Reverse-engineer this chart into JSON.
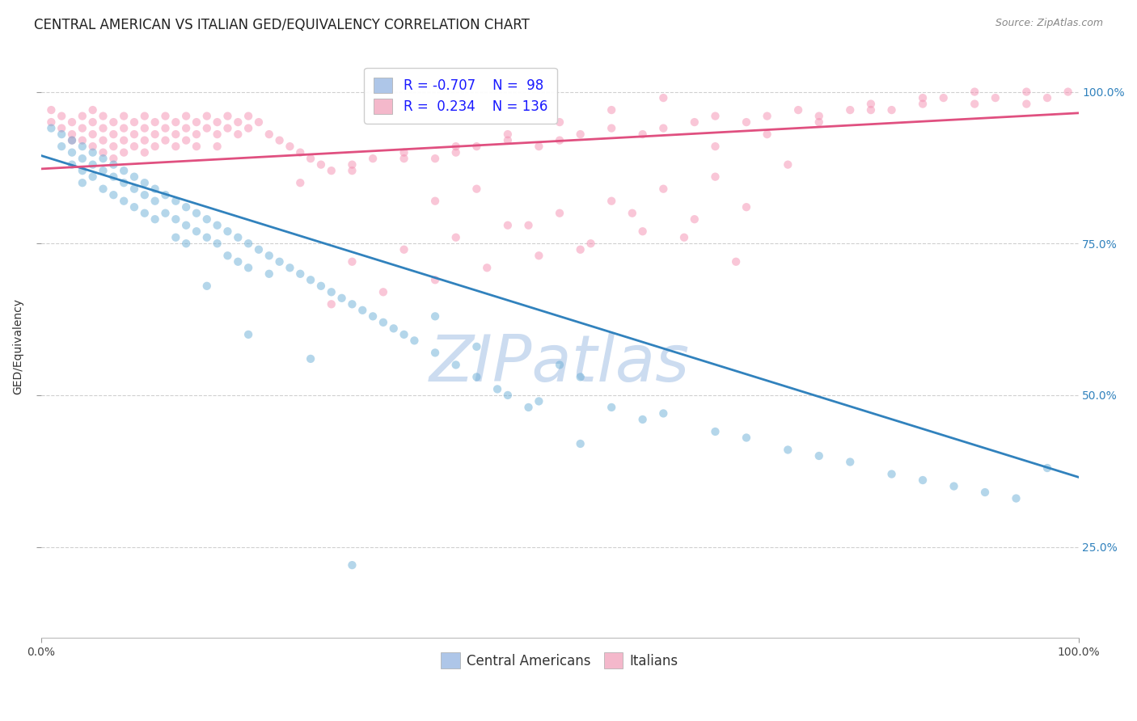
{
  "title": "CENTRAL AMERICAN VS ITALIAN GED/EQUIVALENCY CORRELATION CHART",
  "source": "Source: ZipAtlas.com",
  "ylabel": "GED/Equivalency",
  "watermark": "ZIPatlas",
  "legend_entries": [
    {
      "label": "Central Americans",
      "R": "-0.707",
      "N": "98"
    },
    {
      "label": "Italians",
      "R": "0.234",
      "N": "136"
    }
  ],
  "blue_scatter_x": [
    0.01,
    0.02,
    0.02,
    0.03,
    0.03,
    0.03,
    0.04,
    0.04,
    0.04,
    0.04,
    0.05,
    0.05,
    0.05,
    0.06,
    0.06,
    0.06,
    0.07,
    0.07,
    0.07,
    0.08,
    0.08,
    0.08,
    0.09,
    0.09,
    0.09,
    0.1,
    0.1,
    0.1,
    0.11,
    0.11,
    0.11,
    0.12,
    0.12,
    0.13,
    0.13,
    0.13,
    0.14,
    0.14,
    0.14,
    0.15,
    0.15,
    0.16,
    0.16,
    0.17,
    0.17,
    0.18,
    0.18,
    0.19,
    0.19,
    0.2,
    0.2,
    0.21,
    0.22,
    0.22,
    0.23,
    0.24,
    0.25,
    0.26,
    0.27,
    0.28,
    0.29,
    0.3,
    0.31,
    0.32,
    0.33,
    0.34,
    0.35,
    0.36,
    0.38,
    0.4,
    0.42,
    0.44,
    0.45,
    0.47,
    0.5,
    0.52,
    0.55,
    0.58,
    0.6,
    0.65,
    0.68,
    0.72,
    0.75,
    0.78,
    0.82,
    0.85,
    0.88,
    0.91,
    0.94,
    0.97,
    0.48,
    0.52,
    0.38,
    0.42,
    0.3,
    0.26,
    0.2,
    0.16
  ],
  "blue_scatter_y": [
    0.94,
    0.93,
    0.91,
    0.92,
    0.9,
    0.88,
    0.91,
    0.89,
    0.87,
    0.85,
    0.9,
    0.88,
    0.86,
    0.89,
    0.87,
    0.84,
    0.88,
    0.86,
    0.83,
    0.87,
    0.85,
    0.82,
    0.86,
    0.84,
    0.81,
    0.85,
    0.83,
    0.8,
    0.84,
    0.82,
    0.79,
    0.83,
    0.8,
    0.82,
    0.79,
    0.76,
    0.81,
    0.78,
    0.75,
    0.8,
    0.77,
    0.79,
    0.76,
    0.78,
    0.75,
    0.77,
    0.73,
    0.76,
    0.72,
    0.75,
    0.71,
    0.74,
    0.73,
    0.7,
    0.72,
    0.71,
    0.7,
    0.69,
    0.68,
    0.67,
    0.66,
    0.65,
    0.64,
    0.63,
    0.62,
    0.61,
    0.6,
    0.59,
    0.57,
    0.55,
    0.53,
    0.51,
    0.5,
    0.48,
    0.55,
    0.53,
    0.48,
    0.46,
    0.47,
    0.44,
    0.43,
    0.41,
    0.4,
    0.39,
    0.37,
    0.36,
    0.35,
    0.34,
    0.33,
    0.38,
    0.49,
    0.42,
    0.63,
    0.58,
    0.22,
    0.56,
    0.6,
    0.68
  ],
  "pink_scatter_x": [
    0.01,
    0.01,
    0.02,
    0.02,
    0.03,
    0.03,
    0.03,
    0.04,
    0.04,
    0.04,
    0.05,
    0.05,
    0.05,
    0.05,
    0.06,
    0.06,
    0.06,
    0.06,
    0.07,
    0.07,
    0.07,
    0.07,
    0.08,
    0.08,
    0.08,
    0.08,
    0.09,
    0.09,
    0.09,
    0.1,
    0.1,
    0.1,
    0.1,
    0.11,
    0.11,
    0.11,
    0.12,
    0.12,
    0.12,
    0.13,
    0.13,
    0.13,
    0.14,
    0.14,
    0.14,
    0.15,
    0.15,
    0.15,
    0.16,
    0.16,
    0.17,
    0.17,
    0.17,
    0.18,
    0.18,
    0.19,
    0.19,
    0.2,
    0.2,
    0.21,
    0.22,
    0.23,
    0.24,
    0.25,
    0.26,
    0.27,
    0.28,
    0.3,
    0.32,
    0.35,
    0.38,
    0.4,
    0.42,
    0.45,
    0.48,
    0.5,
    0.52,
    0.55,
    0.58,
    0.6,
    0.63,
    0.65,
    0.68,
    0.7,
    0.73,
    0.75,
    0.78,
    0.8,
    0.82,
    0.85,
    0.87,
    0.9,
    0.92,
    0.95,
    0.97,
    0.99,
    0.3,
    0.35,
    0.4,
    0.45,
    0.5,
    0.55,
    0.6,
    0.65,
    0.38,
    0.42,
    0.47,
    0.52,
    0.57,
    0.62,
    0.67,
    0.72,
    0.25,
    0.3,
    0.35,
    0.4,
    0.45,
    0.5,
    0.55,
    0.6,
    0.65,
    0.7,
    0.75,
    0.8,
    0.85,
    0.9,
    0.95,
    0.28,
    0.33,
    0.38,
    0.43,
    0.48,
    0.53,
    0.58,
    0.63,
    0.68
  ],
  "pink_scatter_y": [
    0.97,
    0.95,
    0.96,
    0.94,
    0.95,
    0.93,
    0.92,
    0.96,
    0.94,
    0.92,
    0.97,
    0.95,
    0.93,
    0.91,
    0.96,
    0.94,
    0.92,
    0.9,
    0.95,
    0.93,
    0.91,
    0.89,
    0.96,
    0.94,
    0.92,
    0.9,
    0.95,
    0.93,
    0.91,
    0.96,
    0.94,
    0.92,
    0.9,
    0.95,
    0.93,
    0.91,
    0.96,
    0.94,
    0.92,
    0.95,
    0.93,
    0.91,
    0.96,
    0.94,
    0.92,
    0.95,
    0.93,
    0.91,
    0.96,
    0.94,
    0.95,
    0.93,
    0.91,
    0.96,
    0.94,
    0.95,
    0.93,
    0.96,
    0.94,
    0.95,
    0.93,
    0.92,
    0.91,
    0.9,
    0.89,
    0.88,
    0.87,
    0.88,
    0.89,
    0.9,
    0.89,
    0.9,
    0.91,
    0.92,
    0.91,
    0.92,
    0.93,
    0.94,
    0.93,
    0.94,
    0.95,
    0.96,
    0.95,
    0.96,
    0.97,
    0.96,
    0.97,
    0.98,
    0.97,
    0.98,
    0.99,
    0.98,
    0.99,
    1.0,
    0.99,
    1.0,
    0.72,
    0.74,
    0.76,
    0.78,
    0.8,
    0.82,
    0.84,
    0.86,
    0.82,
    0.84,
    0.78,
    0.74,
    0.8,
    0.76,
    0.72,
    0.88,
    0.85,
    0.87,
    0.89,
    0.91,
    0.93,
    0.95,
    0.97,
    0.99,
    0.91,
    0.93,
    0.95,
    0.97,
    0.99,
    1.0,
    0.98,
    0.65,
    0.67,
    0.69,
    0.71,
    0.73,
    0.75,
    0.77,
    0.79,
    0.81
  ],
  "blue_line_x": [
    0.0,
    1.0
  ],
  "blue_line_y": [
    0.895,
    0.365
  ],
  "pink_line_x": [
    0.0,
    1.0
  ],
  "pink_line_y": [
    0.873,
    0.965
  ],
  "blue_dot_color": "#6baed6",
  "pink_dot_color": "#f48fb1",
  "blue_line_color": "#3182bd",
  "pink_line_color": "#e05080",
  "blue_legend_color": "#aec6e8",
  "pink_legend_color": "#f4b8cb",
  "scatter_alpha": 0.5,
  "scatter_size": 55,
  "title_fontsize": 12,
  "source_fontsize": 9,
  "axis_tick_fontsize": 10,
  "ylabel_fontsize": 10,
  "legend_fontsize": 12,
  "watermark_color": "#ccdcf0",
  "watermark_fontsize": 58,
  "background_color": "#ffffff",
  "grid_color": "#d0d0d0",
  "xmin": 0.0,
  "xmax": 1.0,
  "ymin": 0.1,
  "ymax": 1.06,
  "ytick_positions": [
    0.25,
    0.5,
    0.75,
    1.0
  ],
  "ytick_labels": [
    "25.0%",
    "50.0%",
    "75.0%",
    "100.0%"
  ],
  "xtick_positions": [
    0.0,
    1.0
  ],
  "xtick_labels": [
    "0.0%",
    "100.0%"
  ]
}
